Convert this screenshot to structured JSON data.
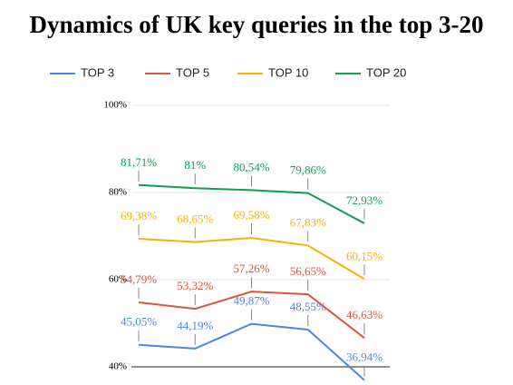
{
  "chart_data": {
    "type": "line",
    "title": "Dynamics of UK key queries in the top 3-20",
    "categories": [
      null,
      null,
      null,
      null,
      null
    ],
    "series": [
      {
        "name": "TOP 3",
        "color": "#4a86e8",
        "values": [
          45.05,
          44.19,
          49.87,
          48.55,
          36.94
        ],
        "value_labels": [
          "45,05%",
          "44,19%",
          "49,87%",
          "48,55%",
          "36,94%"
        ]
      },
      {
        "name": "TOP 5",
        "color": "#e0533b",
        "values": [
          54.79,
          53.32,
          57.26,
          56.65,
          46.63
        ],
        "value_labels": [
          "54,79%",
          "53,32%",
          "57,26%",
          "56,65%",
          "46,63%"
        ]
      },
      {
        "name": "TOP 10",
        "color": "#f4b400",
        "values": [
          69.38,
          68.65,
          69.58,
          67.83,
          60.15
        ],
        "value_labels": [
          "69,38%",
          "68,65%",
          "69,58%",
          "67,83%",
          "60,15%"
        ]
      },
      {
        "name": "TOP 20",
        "color": "#0f9d58",
        "values": [
          81.71,
          81,
          80.54,
          79.86,
          72.93
        ],
        "value_labels": [
          "81,71%",
          "81%",
          "80,54%",
          "79,86%",
          "72,93%"
        ]
      }
    ],
    "ylim": [
      40,
      100
    ],
    "yticks": [
      {
        "value": 40,
        "label": "40%"
      },
      {
        "value": 60,
        "label": "60%"
      },
      {
        "value": 80,
        "label": "80%"
      },
      {
        "value": 100,
        "label": "100%"
      }
    ],
    "grid": true,
    "legend": "top"
  }
}
